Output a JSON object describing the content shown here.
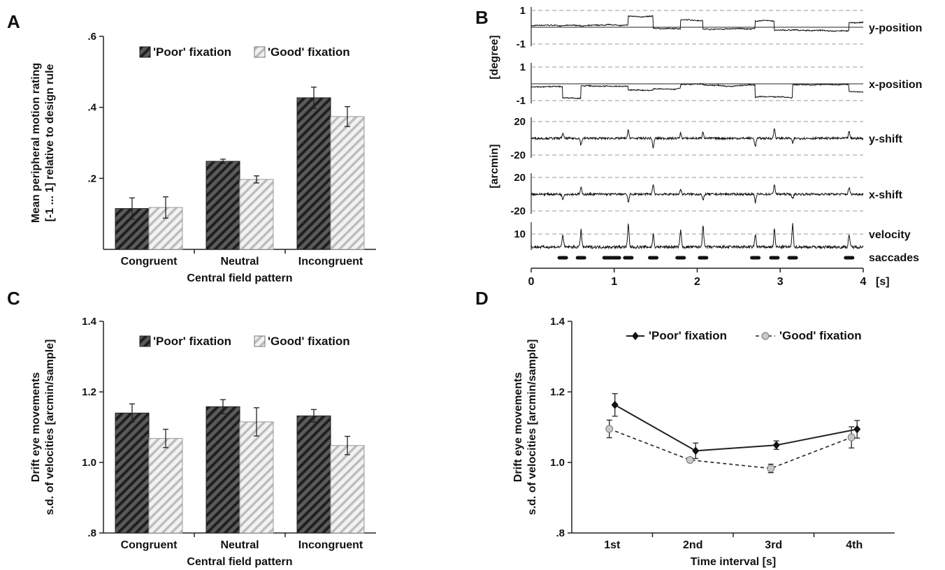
{
  "colors": {
    "poor_fill": "#5a5a5a",
    "poor_stripe": "#222222",
    "good_fill": "#e8e8e8",
    "good_stripe": "#bdbdbd",
    "axis": "#222222",
    "dashed": "#9a9a9a"
  },
  "panels": {
    "A": {
      "letter": "A"
    },
    "B": {
      "letter": "B"
    },
    "C": {
      "letter": "C"
    },
    "D": {
      "letter": "D"
    }
  },
  "chart_data": [
    {
      "panel": "A",
      "type": "bar",
      "title": "",
      "xlabel": "Central field pattern",
      "ylabel": "Mean peripheral motion rating",
      "ylabel2": "[-1 ... 1] relative to design rule",
      "categories": [
        "Congruent",
        "Neutral",
        "Incongruent"
      ],
      "ylim": [
        0,
        0.6
      ],
      "yticks": [
        0.2,
        0.4,
        0.6
      ],
      "ytick_labels": [
        ".2",
        ".4",
        ".6"
      ],
      "legend": "top-center",
      "grid": false,
      "series": [
        {
          "name": "'Poor' fixation",
          "pattern": "dark-hatch",
          "values": [
            0.115,
            0.248,
            0.427
          ],
          "errors": [
            0.03,
            0.006,
            0.03
          ]
        },
        {
          "name": "'Good' fixation",
          "pattern": "light-hatch",
          "values": [
            0.118,
            0.197,
            0.374
          ],
          "errors": [
            0.03,
            0.01,
            0.028
          ]
        }
      ]
    },
    {
      "panel": "B",
      "type": "line",
      "title": "",
      "xlabel": "[s]",
      "x_ticks": [
        0,
        1,
        2,
        3,
        4
      ],
      "xlim": [
        0,
        4
      ],
      "units": [
        "[degree]",
        "[arcmin]"
      ],
      "grid": false,
      "traces": [
        {
          "name": "y-position",
          "yticks": [
            "1",
            "-1"
          ],
          "ylim": [
            -1,
            1
          ]
        },
        {
          "name": "x-position",
          "yticks": [
            "1",
            "-1"
          ],
          "ylim": [
            -1,
            1
          ]
        },
        {
          "name": "y-shift",
          "yticks": [
            "20",
            "-20"
          ],
          "ylim": [
            -20,
            20
          ]
        },
        {
          "name": "x-shift",
          "yticks": [
            "20",
            "-20"
          ],
          "ylim": [
            -20,
            20
          ]
        },
        {
          "name": "velocity",
          "yticks": [
            "10"
          ],
          "ylim": [
            0,
            15
          ]
        }
      ],
      "saccades_label": "saccades",
      "saccade_times": [
        0.38,
        0.6,
        0.92,
        1.02,
        1.17,
        1.47,
        1.8,
        2.07,
        2.7,
        2.93,
        3.15,
        3.83
      ],
      "step_events": [
        {
          "t": 0.38,
          "y_step": 0.0,
          "x_step": -0.7
        },
        {
          "t": 0.6,
          "y_step": 0.0,
          "x_step": 0.75
        },
        {
          "t": 1.17,
          "y_step": 0.55,
          "x_step": -0.25
        },
        {
          "t": 1.47,
          "y_step": -0.75,
          "x_step": 0.1
        },
        {
          "t": 1.8,
          "y_step": 0.55,
          "x_step": 0.25
        },
        {
          "t": 2.07,
          "y_step": -0.55,
          "x_step": -0.05
        },
        {
          "t": 2.7,
          "y_step": 0.5,
          "x_step": -0.75
        },
        {
          "t": 2.93,
          "y_step": -0.6,
          "x_step": 0.0
        },
        {
          "t": 3.15,
          "y_step": 0.0,
          "x_step": 0.8
        },
        {
          "t": 3.83,
          "y_step": 0.5,
          "x_step": -0.45
        }
      ]
    },
    {
      "panel": "C",
      "type": "bar",
      "title": "",
      "xlabel": "Central field pattern",
      "ylabel": "Drift eye movements",
      "ylabel2": "s.d. of velocities [arcmin/sample]",
      "categories": [
        "Congruent",
        "Neutral",
        "Incongruent"
      ],
      "ylim": [
        0.8,
        1.4
      ],
      "yticks": [
        0.8,
        1.0,
        1.2,
        1.4
      ],
      "ytick_labels": [
        ".8",
        "1.0",
        "1.2",
        "1.4"
      ],
      "legend": "top-center",
      "grid": false,
      "series": [
        {
          "name": "'Poor' fixation",
          "pattern": "dark-hatch",
          "values": [
            1.14,
            1.158,
            1.132
          ],
          "errors": [
            0.026,
            0.02,
            0.018
          ]
        },
        {
          "name": "'Good' fixation",
          "pattern": "light-hatch",
          "values": [
            1.068,
            1.115,
            1.048
          ],
          "errors": [
            0.026,
            0.04,
            0.026
          ]
        }
      ]
    },
    {
      "panel": "D",
      "type": "line",
      "title": "",
      "xlabel": "Time interval [s]",
      "ylabel": "Drift eye movements",
      "ylabel2": "s.d. of velocities [arcmin/sample]",
      "categories": [
        "1st",
        "2nd",
        "3rd",
        "4th"
      ],
      "ylim": [
        0.8,
        1.4
      ],
      "yticks": [
        0.8,
        1.0,
        1.2,
        1.4
      ],
      "ytick_labels": [
        ".8",
        "1.0",
        "1.2",
        "1.4"
      ],
      "legend": "top-center",
      "grid": false,
      "series": [
        {
          "name": "'Poor' fixation",
          "style": "solid, black diamond",
          "values": [
            1.163,
            1.033,
            1.049,
            1.094
          ],
          "errors": [
            0.032,
            0.022,
            0.012,
            0.025
          ]
        },
        {
          "name": "'Good' fixation",
          "style": "dashed, grey circle",
          "values": [
            1.095,
            1.007,
            0.983,
            1.071
          ],
          "errors": [
            0.025,
            0.006,
            0.012,
            0.03
          ]
        }
      ]
    }
  ]
}
